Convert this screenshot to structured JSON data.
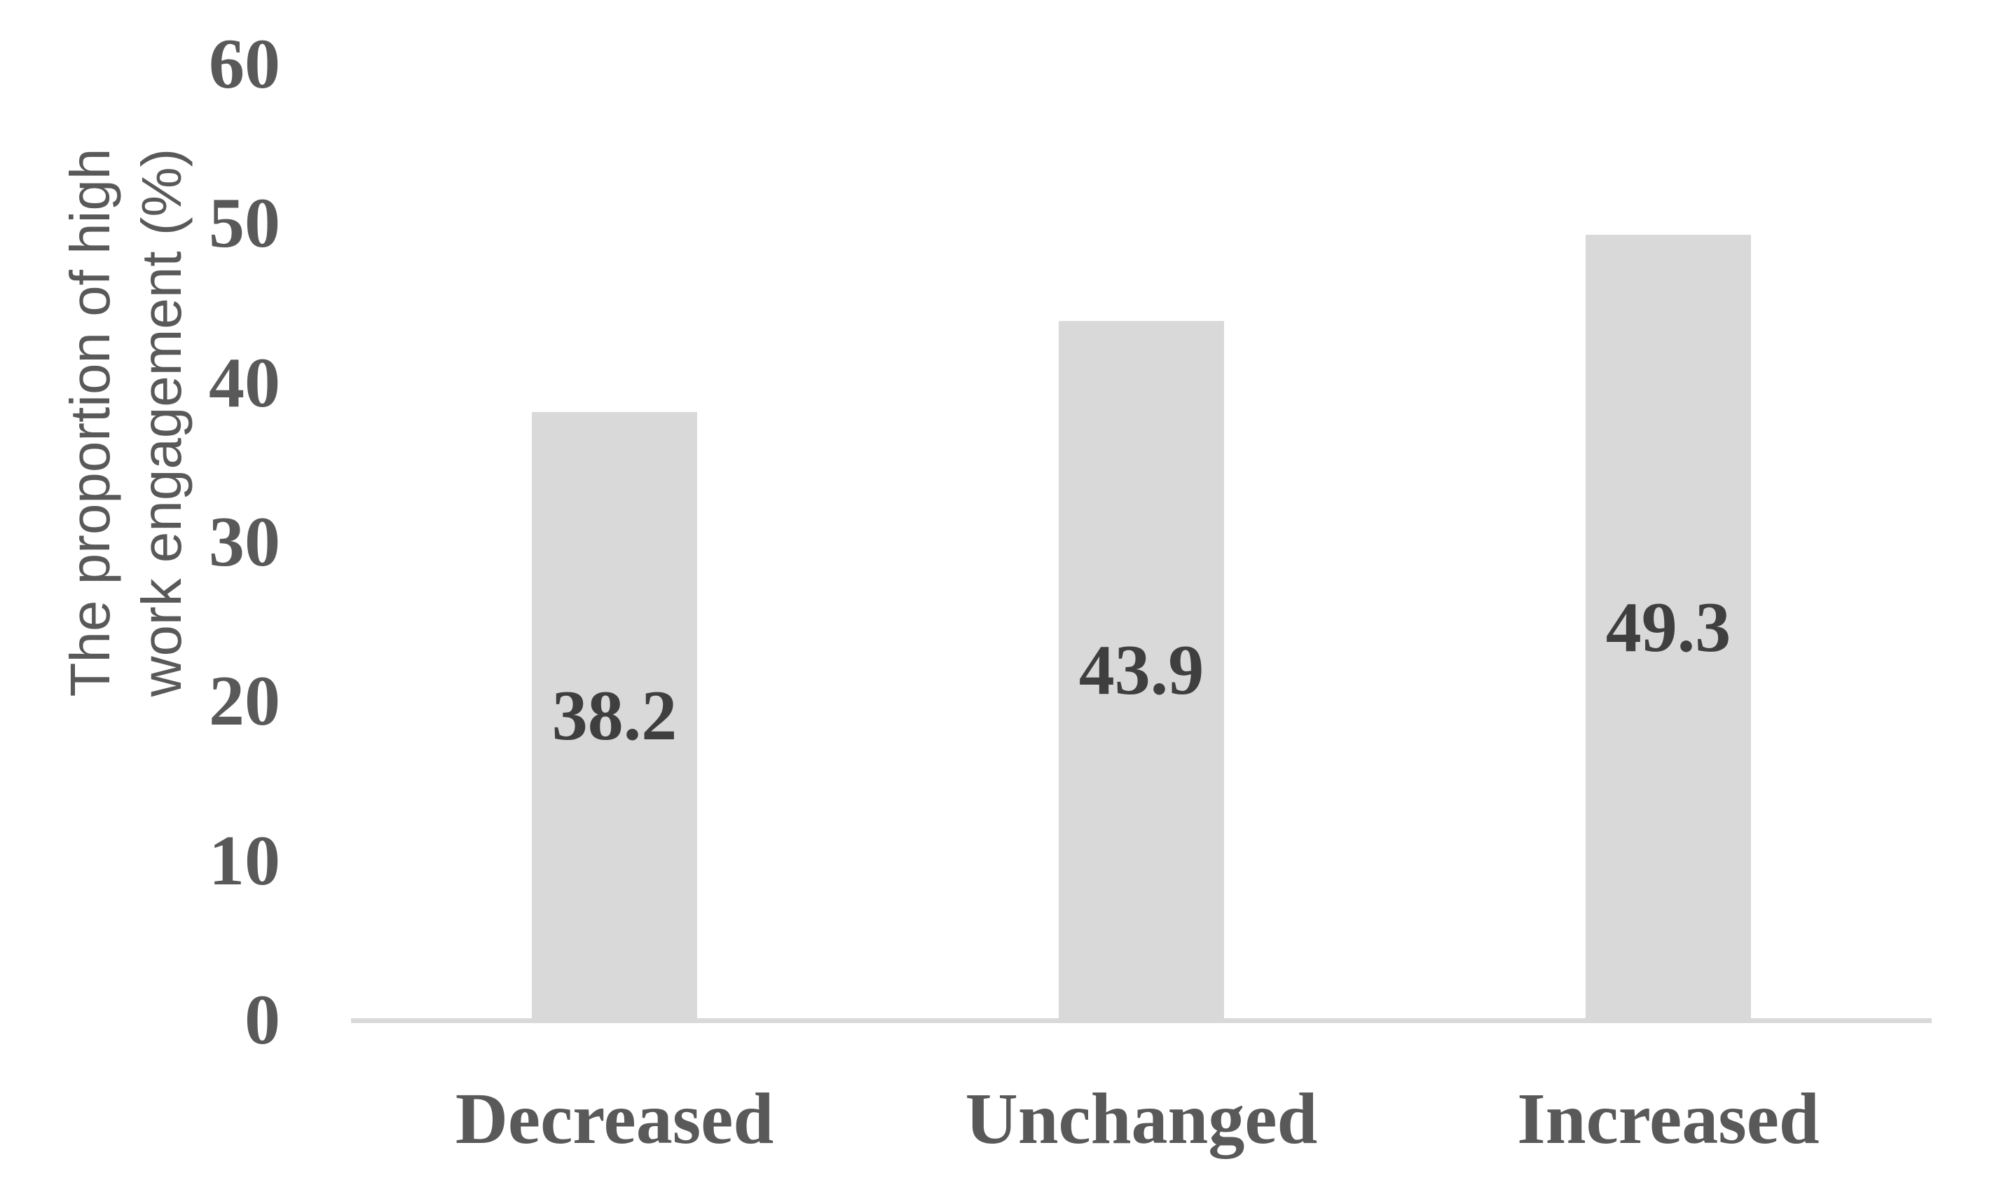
{
  "chart_data": {
    "type": "bar",
    "categories": [
      "Decreased",
      "Unchanged",
      "Increased"
    ],
    "values": [
      38.2,
      43.9,
      49.3
    ],
    "data_labels": [
      "38.2",
      "43.9",
      "49.3"
    ],
    "title": "",
    "xlabel": "",
    "ylabel": "The proportion of high work engagement (%)",
    "ylabel_lines": [
      "The proportion of high",
      "work engagement (%)"
    ],
    "yticks": [
      "0",
      "10",
      "20",
      "30",
      "40",
      "50",
      "60"
    ],
    "ylim": [
      0,
      60
    ],
    "grid": false,
    "legend_position": "none",
    "data_label_position": "center-inside-bar",
    "colors": {
      "bar_fill": "#d9d9d9",
      "axis_line": "#d9d9d9",
      "tick_label": "#595959",
      "category_label": "#595959",
      "axis_title": "#595959",
      "data_label": "#3f3f3f",
      "background": "#ffffff"
    }
  }
}
